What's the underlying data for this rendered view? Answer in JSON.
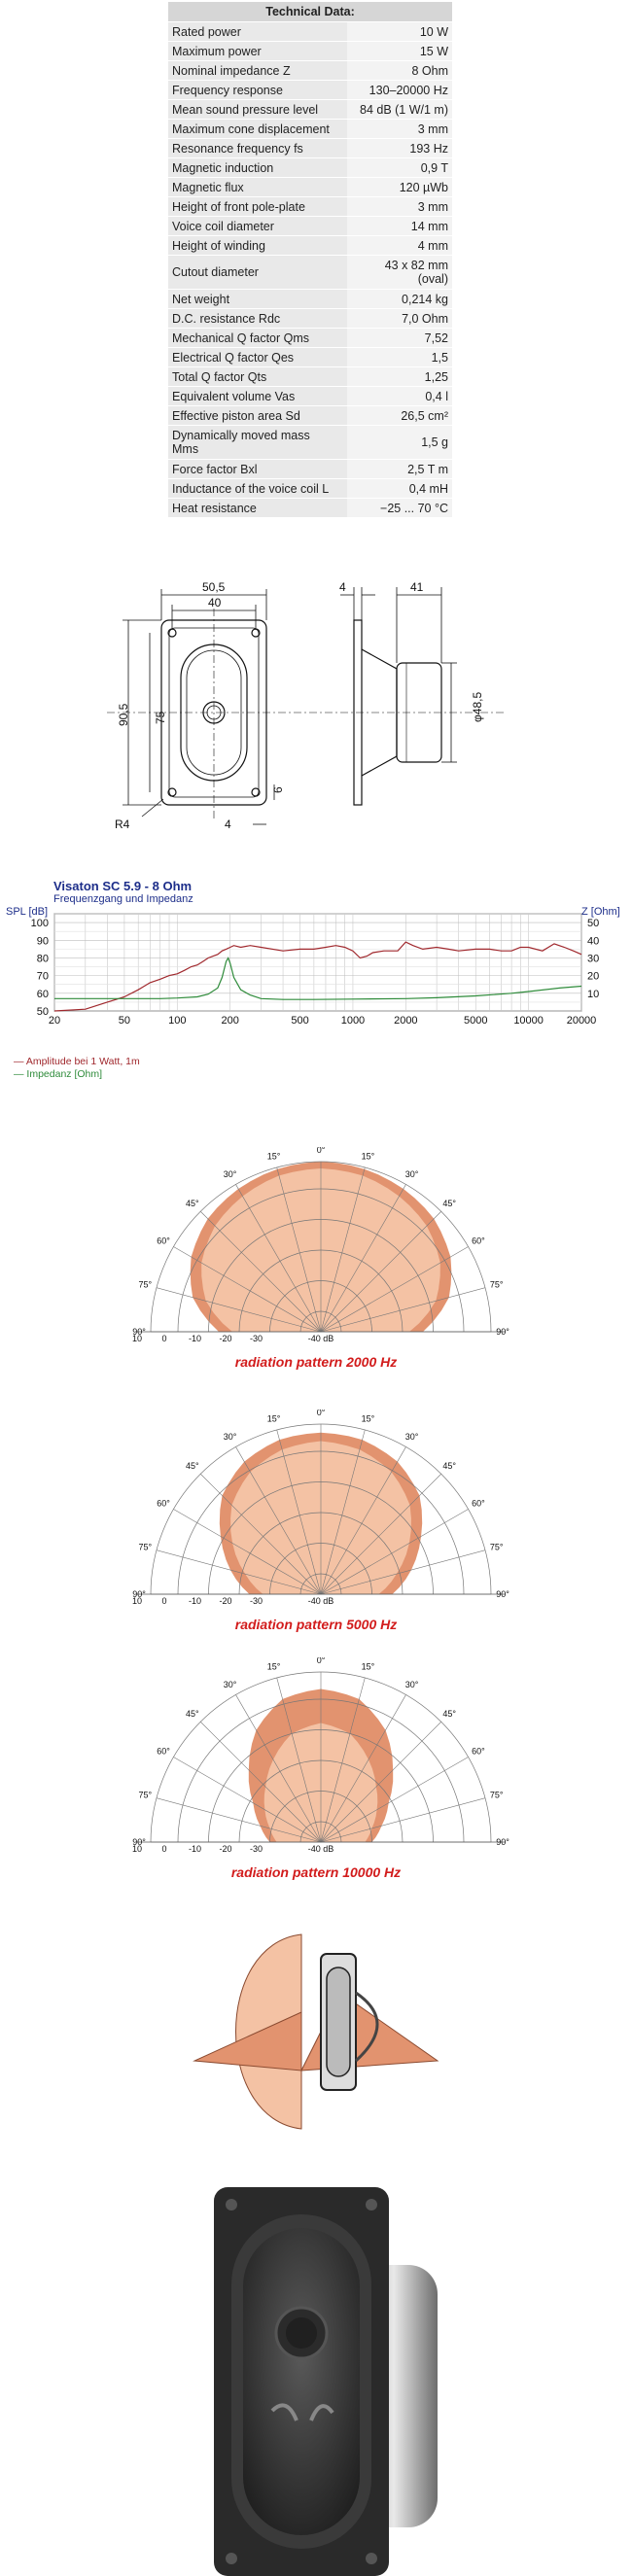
{
  "spec": {
    "title": "Technical Data:",
    "rows": [
      {
        "label": "Rated power",
        "value": "10 W"
      },
      {
        "label": "Maximum power",
        "value": "15 W"
      },
      {
        "label": "Nominal impedance Z",
        "value": "8 Ohm"
      },
      {
        "label": "Frequency response",
        "value": "130–20000 Hz"
      },
      {
        "label": "Mean sound pressure level",
        "value": "84 dB (1 W/1 m)"
      },
      {
        "label": "Maximum cone displacement",
        "value": "3 mm"
      },
      {
        "label": "Resonance frequency fs",
        "value": "193 Hz"
      },
      {
        "label": "Magnetic induction",
        "value": "0,9 T"
      },
      {
        "label": "Magnetic flux",
        "value": "120 µWb"
      },
      {
        "label": "Height of front pole-plate",
        "value": "3 mm"
      },
      {
        "label": "Voice coil diameter",
        "value": "14 mm"
      },
      {
        "label": "Height of winding",
        "value": "4 mm"
      },
      {
        "label": "Cutout diameter",
        "value": "43 x 82 mm",
        "value2": "(oval)"
      },
      {
        "label": "Net weight",
        "value": "0,214 kg"
      },
      {
        "label": "D.C. resistance Rdc",
        "value": "7,0 Ohm"
      },
      {
        "label": "Mechanical Q factor Qms",
        "value": "7,52"
      },
      {
        "label": "Electrical Q factor Qes",
        "value": "1,5"
      },
      {
        "label": "Total Q factor Qts",
        "value": "1,25"
      },
      {
        "label": "Equivalent volume Vas",
        "value": "0,4 l"
      },
      {
        "label": "Effective piston area Sd",
        "value": "26,5 cm²"
      },
      {
        "label": "Dynamically moved mass",
        "label2": "Mms",
        "value": "1,5 g"
      },
      {
        "label": "Force factor Bxl",
        "value": "2,5 T m"
      },
      {
        "label": "Inductance of the voice coil L",
        "value": "0,4 mH"
      },
      {
        "label": "Heat resistance",
        "value": "−25 ... 70 °C"
      }
    ]
  },
  "drawing": {
    "d_505": "50,5",
    "d_40": "40",
    "d_905": "90,5",
    "d_75": "75",
    "d_6": "6",
    "d_4b": "4",
    "d_r4": "R4",
    "d_4s": "4",
    "d_41": "41",
    "d_485": "φ48,5"
  },
  "freq_chart": {
    "title": "Visaton SC 5.9 - 8 Ohm",
    "subtitle": "Frequenzgang und Impedanz",
    "spl_label": "SPL [dB]",
    "z_label": "Z [Ohm]",
    "legend_spl": "Amplitude bei 1 Watt, 1m",
    "legend_z": "Impedanz [Ohm]",
    "spl_color": "#a0282d",
    "z_color": "#2e8b3a"
  },
  "chart_data": {
    "type": "line",
    "title": "Visaton SC 5.9 - 8 Ohm",
    "subtitle": "Frequenzgang und Impedanz",
    "xlabel": "",
    "x_scale": "log",
    "xlim": [
      20,
      20000
    ],
    "x_ticks": [
      "20",
      "50",
      "100",
      "200",
      "500",
      "1000",
      "2000",
      "5000",
      "10000",
      "20000"
    ],
    "ylabel": "SPL [dB]",
    "ylim": [
      50,
      105
    ],
    "y_ticks": [
      "50",
      "60",
      "70",
      "80",
      "90",
      "100"
    ],
    "y2label": "Z [Ohm]",
    "y2lim": [
      0,
      55
    ],
    "y2_ticks": [
      "10",
      "20",
      "30",
      "40",
      "50"
    ],
    "grid": true,
    "legend_position": "bottom-left",
    "series": [
      {
        "name": "Amplitude bei 1 Watt, 1m",
        "axis": "left",
        "x": [
          20,
          30,
          40,
          50,
          60,
          70,
          80,
          90,
          100,
          110,
          120,
          130,
          140,
          150,
          160,
          170,
          180,
          190,
          200,
          210,
          230,
          260,
          300,
          400,
          500,
          600,
          700,
          800,
          900,
          1000,
          1100,
          1200,
          1300,
          1500,
          1800,
          2000,
          2200,
          2500,
          3000,
          3500,
          4000,
          5000,
          6000,
          7000,
          8000,
          9000,
          10000,
          12000,
          14000,
          16000,
          18000,
          20000
        ],
        "y": [
          50,
          51,
          55,
          58,
          62,
          66,
          68,
          70,
          71,
          73,
          75,
          76,
          78,
          80,
          81,
          82,
          84,
          85,
          86,
          87,
          86,
          87,
          86,
          84,
          85,
          85,
          86,
          87,
          86,
          84,
          80,
          81,
          83,
          84,
          84,
          89,
          87,
          85,
          86,
          85,
          84,
          85,
          85,
          84,
          84,
          86,
          86,
          84,
          88,
          86,
          84,
          82
        ]
      },
      {
        "name": "Impedanz [Ohm]",
        "axis": "right",
        "x": [
          20,
          50,
          80,
          100,
          130,
          150,
          170,
          180,
          190,
          195,
          200,
          210,
          230,
          260,
          300,
          400,
          600,
          1000,
          2000,
          3000,
          5000,
          8000,
          10000,
          15000,
          20000
        ],
        "y": [
          7,
          7,
          7,
          7.3,
          8,
          9.5,
          13,
          19,
          28,
          30,
          27,
          19,
          12,
          9,
          7,
          6.5,
          6.5,
          6.7,
          7,
          7.5,
          8.5,
          10,
          11,
          13,
          14
        ]
      }
    ]
  },
  "polar": {
    "angles": [
      "0°",
      "15°",
      "30°",
      "45°",
      "60°",
      "75°",
      "90°"
    ],
    "rings": [
      "10",
      "0",
      "-10",
      "-20",
      "-30",
      "-40 dB"
    ],
    "fill_light": "#f4c2a4",
    "fill_dark": "#e2936f",
    "titles": [
      "radiation pattern 2000 Hz",
      "radiation pattern 5000 Hz",
      "radiation pattern 10000 Hz"
    ]
  }
}
